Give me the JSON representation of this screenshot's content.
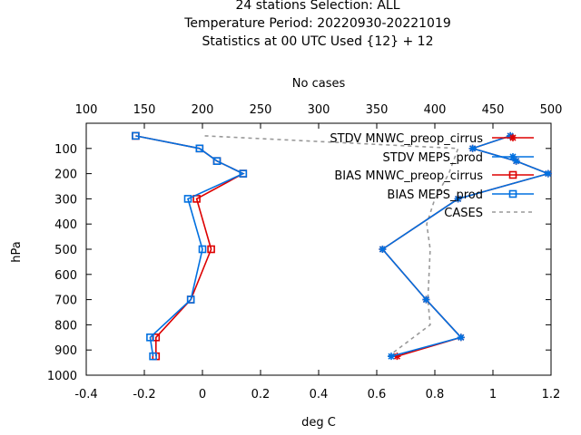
{
  "title_lines": [
    "24 stations Selection: ALL",
    "Temperature  Period: 20220930-20221019",
    "Statistics at 00 UTC  Used {12} + 12"
  ],
  "chart_data": {
    "type": "line",
    "xlabel": "deg C",
    "ylabel": "hPa",
    "x2label": "No cases",
    "xlim": [
      -0.4,
      1.2
    ],
    "x2lim": [
      100,
      500
    ],
    "ylim": [
      1000,
      0
    ],
    "y_reversed": true,
    "xticks": [
      -0.4,
      -0.2,
      0,
      0.2,
      0.4,
      0.6,
      0.8,
      1,
      1.2
    ],
    "xtick_labels": [
      "-0.4",
      "-0.2",
      "0",
      "0.2",
      "0.4",
      "0.6",
      "0.8",
      "1",
      "1.2"
    ],
    "x2ticks": [
      100,
      150,
      200,
      250,
      300,
      350,
      400,
      450,
      500
    ],
    "x2tick_labels": [
      "100",
      "150",
      "200",
      "250",
      "300",
      "350",
      "400",
      "450",
      "500"
    ],
    "yticks": [
      100,
      200,
      300,
      400,
      500,
      600,
      700,
      800,
      900,
      1000
    ],
    "ytick_labels": [
      "100",
      "200",
      "300",
      "400",
      "500",
      "600",
      "700",
      "800",
      "900",
      "1000"
    ],
    "grid": false,
    "legend_position": "top-right",
    "series": [
      {
        "name": "STDV MNWC_preop_cirrus",
        "color": "#dd0000",
        "marker": "star",
        "axis": "x",
        "points": [
          [
            1.06,
            50
          ],
          [
            0.93,
            100
          ],
          [
            1.08,
            150
          ],
          [
            1.19,
            200
          ],
          [
            0.88,
            300
          ],
          [
            0.62,
            500
          ],
          [
            0.77,
            700
          ],
          [
            0.89,
            850
          ],
          [
            0.67,
            925
          ]
        ]
      },
      {
        "name": "STDV MEPS_prod",
        "color": "#0070e0",
        "marker": "star",
        "axis": "x",
        "points": [
          [
            1.06,
            50
          ],
          [
            0.93,
            100
          ],
          [
            1.08,
            150
          ],
          [
            1.19,
            200
          ],
          [
            0.88,
            300
          ],
          [
            0.62,
            500
          ],
          [
            0.77,
            700
          ],
          [
            0.89,
            850
          ],
          [
            0.65,
            925
          ]
        ]
      },
      {
        "name": "BIAS MNWC_preop_cirrus",
        "color": "#dd0000",
        "marker": "square",
        "axis": "x",
        "points": [
          [
            -0.23,
            50
          ],
          [
            -0.01,
            100
          ],
          [
            0.05,
            150
          ],
          [
            0.14,
            200
          ],
          [
            -0.02,
            300
          ],
          [
            0.03,
            500
          ],
          [
            -0.04,
            700
          ],
          [
            -0.16,
            850
          ],
          [
            -0.16,
            925
          ]
        ]
      },
      {
        "name": "BIAS MEPS_prod",
        "color": "#0070e0",
        "marker": "square",
        "axis": "x",
        "points": [
          [
            -0.23,
            50
          ],
          [
            -0.01,
            100
          ],
          [
            0.05,
            150
          ],
          [
            0.14,
            200
          ],
          [
            -0.05,
            300
          ],
          [
            0,
            500
          ],
          [
            -0.04,
            700
          ],
          [
            -0.18,
            850
          ],
          [
            -0.17,
            925
          ]
        ]
      },
      {
        "name": "CASES",
        "color": "#999999",
        "marker": "none",
        "dashed": true,
        "axis": "x2",
        "points": [
          [
            202,
            50
          ],
          [
            420,
            100
          ],
          [
            412,
            200
          ],
          [
            400,
            300
          ],
          [
            393,
            400
          ],
          [
            396,
            500
          ],
          [
            395,
            600
          ],
          [
            394,
            700
          ],
          [
            396,
            800
          ],
          [
            360,
            925
          ]
        ]
      }
    ]
  }
}
